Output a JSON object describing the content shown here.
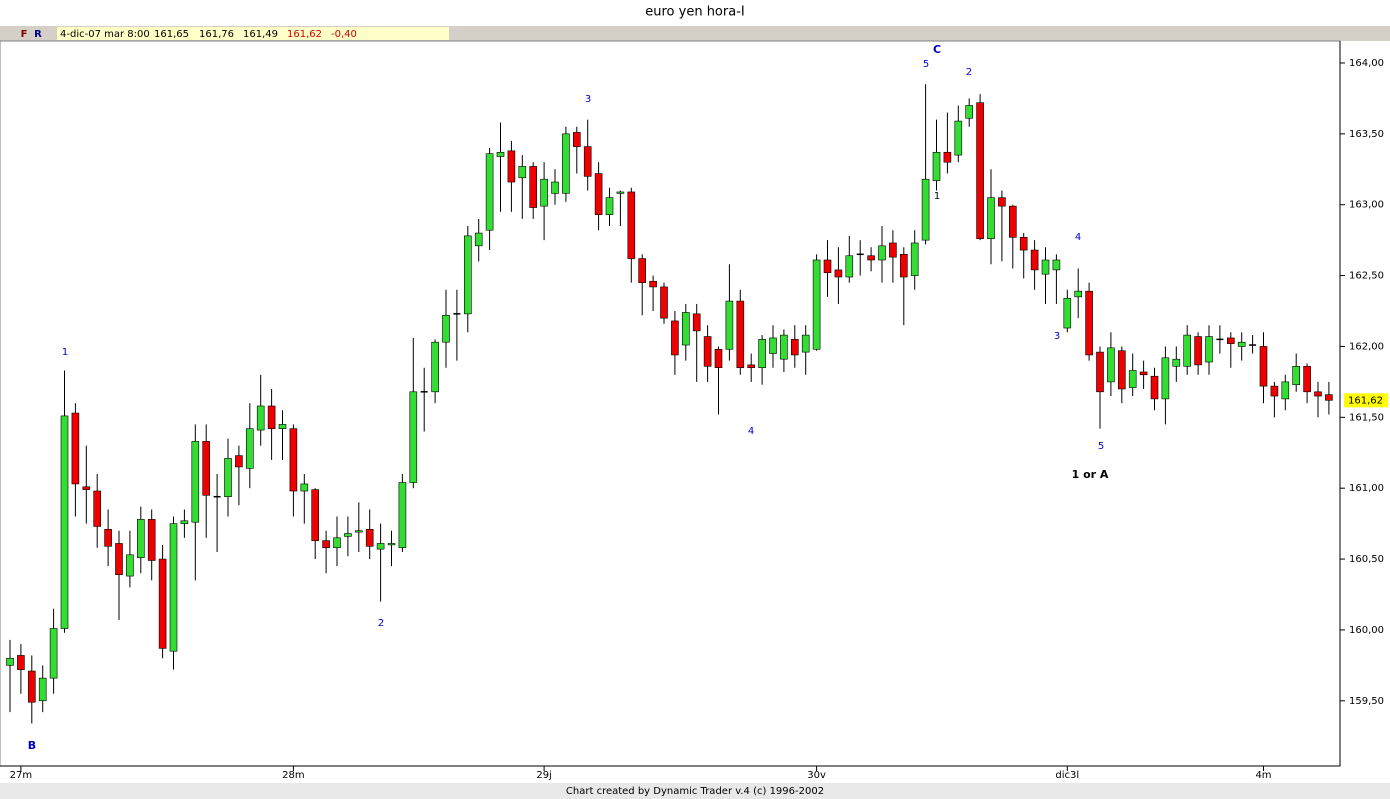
{
  "header": {
    "title": "euro yen hora-I",
    "buttons": [
      "F",
      "R"
    ],
    "fields": [
      "4-dic-07 mar 8:00",
      "161,65",
      "161,76",
      "161,49",
      "161,62",
      "-0,40"
    ]
  },
  "footer": "Chart created by Dynamic Trader v.4  (c) 1996-2002",
  "chart_data": {
    "type": "candlestick",
    "up_color": "#33dd33",
    "down_color": "#ee0000",
    "flat_color": "#000000",
    "ylim": [
      159.04,
      164.155
    ],
    "yticks": [
      {
        "value": 159.5,
        "label": "159,50"
      },
      {
        "value": 160,
        "label": "160,00"
      },
      {
        "value": 160.5,
        "label": "160,50"
      },
      {
        "value": 161,
        "label": "161,00"
      },
      {
        "value": 161.5,
        "label": "161,50"
      },
      {
        "value": 162,
        "label": "162,00"
      },
      {
        "value": 162.5,
        "label": "162,50"
      },
      {
        "value": 163,
        "label": "163,00"
      },
      {
        "value": 163.5,
        "label": "163,50"
      },
      {
        "value": 164,
        "label": "164,00"
      }
    ],
    "last": {
      "value": 161.62,
      "label": "161,62"
    },
    "categories": [
      null,
      "27m",
      null,
      null,
      null,
      null,
      null,
      null,
      null,
      null,
      null,
      null,
      null,
      null,
      null,
      null,
      null,
      null,
      null,
      null,
      null,
      null,
      null,
      null,
      null,
      null,
      "28m",
      null,
      null,
      null,
      null,
      null,
      null,
      null,
      null,
      null,
      null,
      null,
      null,
      null,
      null,
      null,
      null,
      null,
      null,
      null,
      null,
      null,
      null,
      "29j",
      null,
      null,
      null,
      null,
      null,
      null,
      null,
      null,
      null,
      null,
      null,
      null,
      null,
      null,
      null,
      null,
      null,
      null,
      null,
      null,
      null,
      null,
      null,
      null,
      "30v",
      null,
      null,
      null,
      null,
      null,
      null,
      null,
      null,
      null,
      null,
      null,
      null,
      null,
      null,
      null,
      null,
      null,
      null,
      null,
      null,
      null,
      null,
      "dic3l",
      null,
      null,
      null,
      null,
      null,
      null,
      null,
      null,
      null,
      null,
      null,
      null,
      null,
      null,
      null,
      null,
      null,
      "4m",
      null,
      null,
      null,
      null,
      null,
      null
    ],
    "open": [
      159.75,
      159.82,
      159.71,
      159.5,
      159.66,
      160.01,
      161.53,
      161.01,
      160.98,
      160.71,
      160.61,
      160.38,
      160.51,
      160.78,
      160.5,
      159.85,
      160.75,
      160.76,
      161.33,
      160.94,
      160.94,
      161.23,
      161.14,
      161.41,
      161.58,
      161.42,
      161.42,
      160.98,
      160.99,
      160.63,
      160.58,
      160.66,
      160.69,
      160.71,
      160.57,
      160.6,
      160.58,
      161.04,
      161.68,
      161.68,
      162.03,
      162.23,
      162.23,
      162.71,
      162.82,
      163.34,
      163.38,
      163.19,
      163.27,
      162.99,
      163.08,
      163.08,
      163.51,
      163.41,
      163.22,
      162.93,
      163.08,
      163.09,
      162.62,
      162.46,
      162.42,
      162.18,
      162.01,
      162.23,
      162.07,
      161.98,
      161.98,
      162.32,
      161.87,
      161.85,
      161.95,
      161.91,
      162.05,
      161.96,
      161.98,
      162.61,
      162.54,
      162.49,
      162.65,
      162.64,
      162.61,
      162.73,
      162.65,
      162.5,
      162.75,
      163.17,
      163.37,
      163.35,
      163.61,
      163.72,
      162.76,
      163.05,
      162.99,
      162.77,
      162.68,
      162.51,
      162.54,
      162.13,
      162.35,
      162.39,
      161.96,
      161.75,
      161.97,
      161.71,
      161.82,
      161.79,
      161.63,
      161.86,
      161.86,
      162.07,
      161.89,
      162.05,
      162.06,
      162.0,
      162.01,
      162.0,
      161.72,
      161.63,
      161.73,
      161.86,
      161.68,
      161.66
    ],
    "high": [
      159.93,
      159.9,
      159.82,
      159.75,
      160.15,
      161.83,
      161.6,
      161.3,
      161.1,
      160.85,
      160.7,
      160.7,
      160.87,
      160.85,
      160.6,
      160.8,
      160.85,
      161.45,
      161.45,
      161.1,
      161.35,
      161.3,
      161.6,
      161.8,
      161.7,
      161.55,
      161.45,
      161.1,
      161.0,
      160.7,
      160.8,
      160.8,
      160.9,
      160.85,
      160.75,
      160.7,
      161.1,
      162.06,
      161.85,
      162.05,
      162.4,
      162.4,
      162.85,
      162.9,
      163.4,
      163.58,
      163.45,
      163.35,
      163.3,
      163.3,
      163.25,
      163.55,
      163.55,
      163.6,
      163.3,
      163.12,
      163.1,
      163.12,
      162.65,
      162.5,
      162.45,
      162.25,
      162.3,
      162.3,
      162.15,
      162.0,
      162.58,
      162.4,
      161.95,
      162.08,
      162.15,
      162.12,
      162.15,
      162.15,
      162.65,
      162.75,
      162.7,
      162.78,
      162.75,
      162.7,
      162.85,
      162.82,
      162.7,
      162.82,
      163.85,
      163.6,
      163.65,
      163.7,
      163.75,
      163.78,
      163.25,
      163.1,
      163.0,
      162.8,
      162.75,
      162.7,
      162.65,
      162.4,
      162.55,
      162.45,
      162.0,
      162.1,
      162.0,
      161.95,
      161.9,
      161.85,
      162.0,
      162.0,
      162.15,
      162.1,
      162.15,
      162.15,
      162.1,
      162.1,
      162.08,
      162.1,
      161.75,
      161.8,
      161.95,
      161.88,
      161.75,
      161.75
    ],
    "low": [
      159.42,
      159.55,
      159.34,
      159.42,
      159.55,
      159.98,
      160.8,
      160.75,
      160.58,
      160.45,
      160.07,
      160.3,
      160.4,
      160.35,
      159.8,
      159.72,
      160.65,
      160.35,
      160.65,
      160.55,
      160.8,
      160.88,
      161.0,
      161.3,
      161.2,
      161.2,
      160.8,
      160.75,
      160.5,
      160.4,
      160.45,
      160.52,
      160.55,
      160.5,
      160.2,
      160.45,
      160.55,
      161.0,
      161.4,
      161.6,
      161.85,
      161.9,
      162.1,
      162.6,
      162.68,
      162.95,
      162.95,
      162.9,
      162.9,
      162.75,
      163.0,
      163.02,
      163.22,
      163.1,
      162.82,
      162.85,
      162.85,
      162.45,
      162.22,
      162.25,
      162.16,
      161.8,
      161.9,
      161.75,
      161.75,
      161.52,
      161.9,
      161.8,
      161.75,
      161.73,
      161.85,
      161.82,
      161.85,
      161.8,
      161.97,
      162.35,
      162.3,
      162.45,
      162.5,
      162.53,
      162.45,
      162.45,
      162.15,
      162.4,
      162.72,
      163.1,
      163.22,
      163.3,
      163.55,
      162.75,
      162.58,
      162.6,
      162.55,
      162.48,
      162.4,
      162.3,
      162.3,
      162.1,
      162.2,
      161.9,
      161.42,
      161.65,
      161.6,
      161.65,
      161.7,
      161.55,
      161.45,
      161.75,
      161.8,
      161.8,
      161.8,
      161.95,
      161.85,
      161.9,
      161.95,
      161.6,
      161.5,
      161.55,
      161.68,
      161.6,
      161.5,
      161.52
    ],
    "close": [
      159.8,
      159.72,
      159.49,
      159.66,
      160.01,
      161.51,
      161.03,
      160.99,
      160.73,
      160.59,
      160.39,
      160.53,
      160.78,
      160.49,
      159.87,
      160.75,
      160.77,
      161.33,
      160.95,
      160.94,
      161.21,
      161.15,
      161.42,
      161.58,
      161.42,
      161.45,
      160.98,
      161.03,
      160.63,
      160.58,
      160.65,
      160.68,
      160.7,
      160.59,
      160.61,
      160.61,
      161.04,
      161.68,
      161.68,
      162.03,
      162.22,
      162.23,
      162.78,
      162.8,
      163.36,
      163.37,
      163.16,
      163.27,
      162.98,
      163.18,
      163.16,
      163.5,
      163.41,
      163.2,
      162.93,
      163.05,
      163.09,
      162.62,
      162.45,
      162.42,
      162.2,
      161.94,
      162.24,
      162.11,
      161.86,
      161.85,
      162.32,
      161.85,
      161.85,
      162.05,
      162.06,
      162.08,
      161.94,
      162.08,
      162.61,
      162.52,
      162.49,
      162.64,
      162.65,
      162.61,
      162.71,
      162.63,
      162.49,
      162.73,
      163.18,
      163.37,
      163.3,
      163.59,
      163.7,
      162.76,
      163.05,
      162.99,
      162.77,
      162.68,
      162.54,
      162.61,
      162.61,
      162.34,
      162.39,
      161.94,
      161.68,
      161.99,
      161.7,
      161.83,
      161.8,
      161.63,
      161.92,
      161.91,
      162.08,
      161.87,
      162.07,
      162.05,
      162.02,
      162.03,
      162.01,
      161.72,
      161.65,
      161.75,
      161.86,
      161.68,
      161.65,
      161.62
    ],
    "annotations": [
      "1",
      "B",
      "2",
      "3",
      "4",
      "5",
      "C",
      "1",
      "2",
      "3",
      "4",
      "5",
      "1 or A"
    ]
  }
}
